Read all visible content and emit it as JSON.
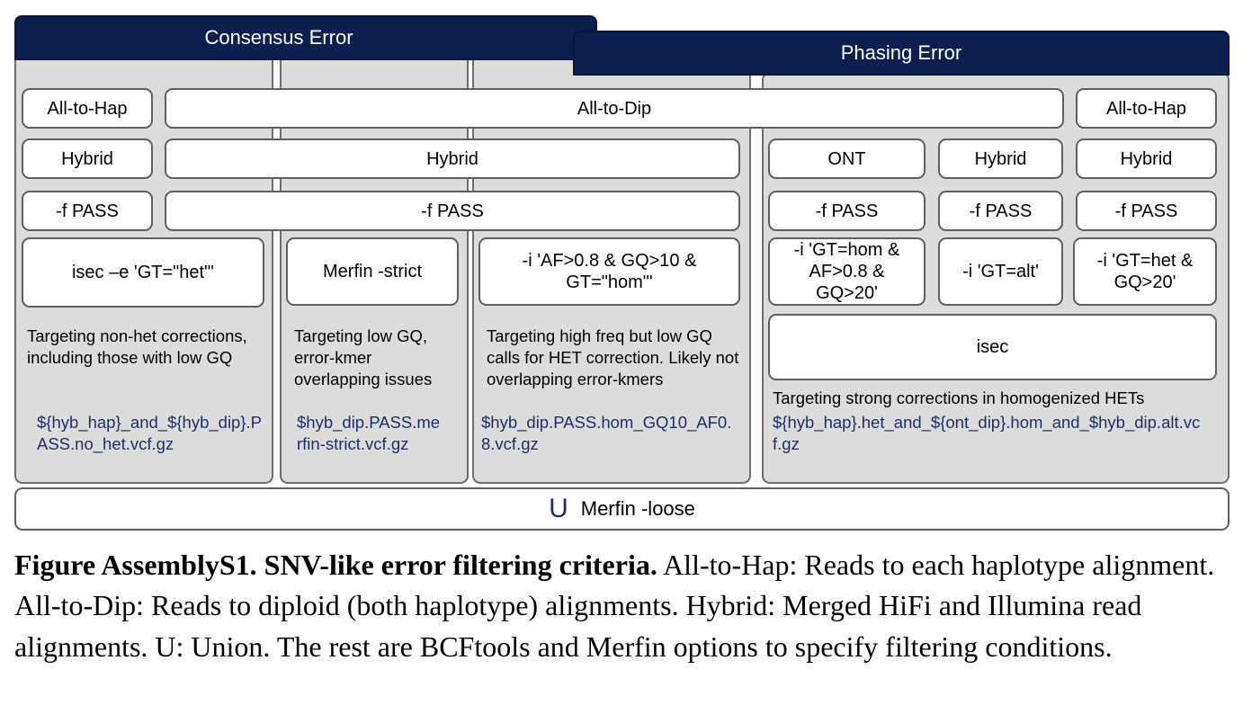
{
  "headers": {
    "consensus": "Consensus Error",
    "phasing": "Phasing Error"
  },
  "row1": {
    "a": "All-to-Hap",
    "b": "All-to-Dip",
    "c": "All-to-Hap"
  },
  "row2": {
    "a": "Hybrid",
    "b": "Hybrid",
    "c": "ONT",
    "d": "Hybrid",
    "e": "Hybrid"
  },
  "row3": {
    "a": "-f PASS",
    "b": "-f PASS",
    "c": "-f PASS",
    "d": "-f PASS",
    "e": "-f PASS"
  },
  "row4": {
    "a": "isec –e 'GT=\"het\"'",
    "b": "Merfin -strict",
    "c": "-i 'AF>0.8 & GQ>10 & GT=\"hom\"'",
    "d": "-i 'GT=hom & AF>0.8 & GQ>20'",
    "e": "-i 'GT=alt'",
    "f": "-i 'GT=het & GQ>20'"
  },
  "isec": "isec",
  "descriptions": {
    "c1": "Targeting non-het corrections, including those with low GQ",
    "c2": "Targeting low GQ, error-kmer overlapping issues",
    "c3": "Targeting high freq but low GQ calls for HET correction. Likely not overlapping error-kmers",
    "c4": "Targeting strong corrections in homogenized HETs"
  },
  "files": {
    "c1": "${hyb_hap}_and_${hyb_dip}.PASS.no_het.vcf.gz",
    "c2": "$hyb_dip.PASS.merfin-strict.vcf.gz",
    "c3": "$hyb_dip.PASS.hom_GQ10_AF0.8.vcf.gz",
    "c4": "${hyb_hap}.het_and_${ont_dip}.hom_and_$hyb_dip.alt.vcf.gz"
  },
  "union": {
    "symbol": "U",
    "label": "Merfin -loose"
  },
  "caption": {
    "bold": "Figure AssemblyS1. SNV-like error filtering criteria.",
    "text": " All-to-Hap: Reads to each haplotype alignment. All-to-Dip: Reads to diploid (both haplotype) alignments. Hybrid: Merged HiFi and Illumina read alignments. U: Union. The rest are BCFtools and Merfin options to specify filtering conditions."
  },
  "colors": {
    "header_bg": "#0d1f4f",
    "column_bg": "#dcdcdc",
    "file_text": "#1c2f6b"
  }
}
